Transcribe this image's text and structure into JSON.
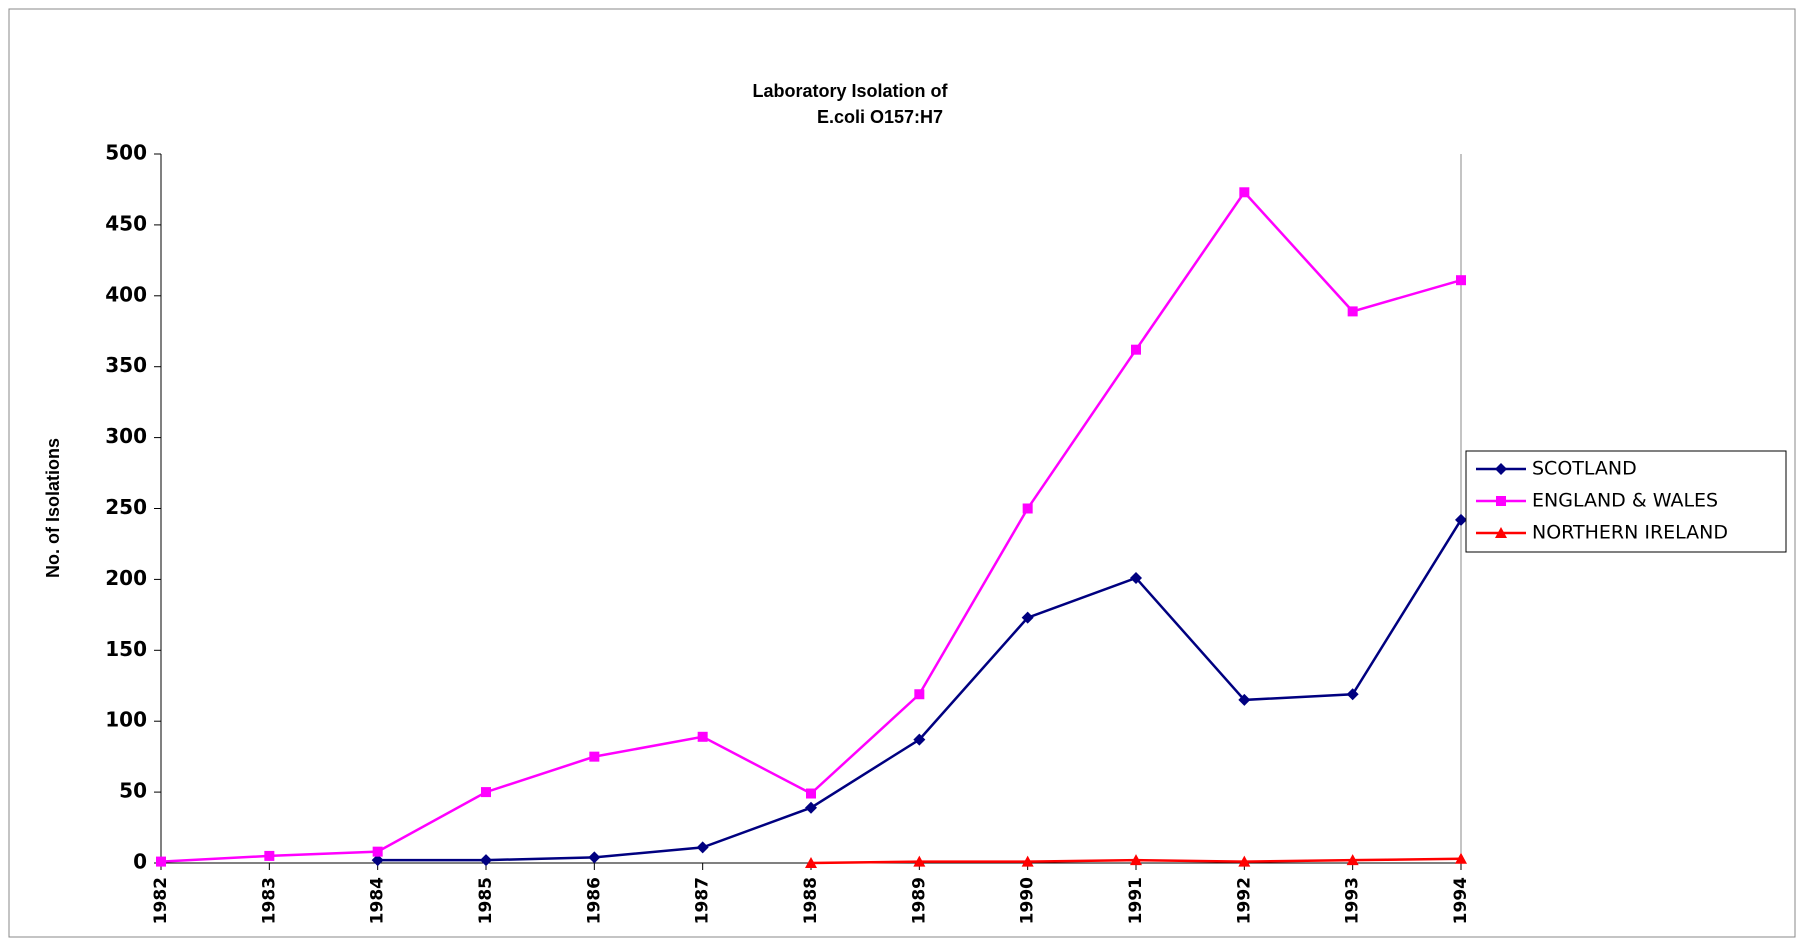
{
  "chart_data": {
    "type": "line",
    "title": [
      "Laboratory Isolation of",
      "E.coli O157:H7"
    ],
    "y_label": "No. of Isolations",
    "categories": [
      "1982",
      "1983",
      "1984",
      "1985",
      "1986",
      "1987",
      "1988",
      "1989",
      "1990",
      "1991",
      "1992",
      "1993",
      "1994"
    ],
    "series": [
      {
        "name": "SCOTLAND",
        "color": "#000080",
        "marker": "diamond",
        "values": [
          null,
          null,
          2,
          2,
          4,
          11,
          39,
          87,
          173,
          201,
          115,
          119,
          242
        ]
      },
      {
        "name": "ENGLAND & WALES",
        "color": "#ff00ff",
        "marker": "square",
        "values": [
          1,
          5,
          8,
          50,
          75,
          89,
          49,
          119,
          250,
          362,
          473,
          389,
          411
        ]
      },
      {
        "name": "NORTHERN IRELAND",
        "color": "#ff0000",
        "marker": "triangle",
        "values": [
          null,
          null,
          null,
          null,
          null,
          null,
          0,
          1,
          1,
          2,
          1,
          2,
          3
        ]
      }
    ],
    "ylim": [
      0,
      500
    ],
    "yticks": [
      0,
      50,
      100,
      150,
      200,
      250,
      300,
      350,
      400,
      450,
      500
    ],
    "grid": false,
    "legend": "right"
  }
}
